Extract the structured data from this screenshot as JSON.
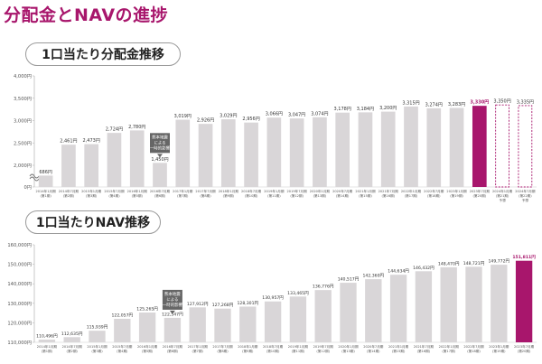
{
  "page_title": "分配金とNAVの進捗",
  "sections": {
    "distribution_title": "1口当たり分配金推移",
    "nav_title": "1口当たりNAV推移"
  },
  "colors": {
    "accent": "#a8166c",
    "bar": "#d9d6d8",
    "annotation_box": "#666666",
    "forecast_border": "#a8166c"
  },
  "chart_data": [
    {
      "type": "bar",
      "title": "1口当たり分配金推移",
      "ylim": [
        0,
        4000
      ],
      "axis_break": true,
      "ytick_labels": [
        "4,000円",
        "3,500円",
        "3,000円",
        "2,500円",
        "2,000円",
        "0円"
      ],
      "ytick_values": [
        4000,
        3500,
        3000,
        2500,
        2000,
        0
      ],
      "categories": [
        "2014年1月期",
        "2014年7月期",
        "2015年1月期",
        "2015年7月期",
        "2016年1月期",
        "2016年7月期",
        "2017年1月期",
        "2017年7月期",
        "2018年1月期",
        "2018年7月期",
        "2019年1月期",
        "2019年7月期",
        "2020年1月期",
        "2020年7月期",
        "2021年1月期",
        "2021年7月期",
        "2022年1月期",
        "2022年7月期",
        "2023年1月期",
        "2023年7月期",
        "2024年1月期",
        "2024年7月期"
      ],
      "periods": [
        "(第1期)",
        "(第2期)",
        "(第3期)",
        "(第4期)",
        "(第5期)",
        "(第6期)",
        "(第7期)",
        "(第8期)",
        "(第9期)",
        "(第10期)",
        "(第11期)",
        "(第12期)",
        "(第13期)",
        "(第14期)",
        "(第15期)",
        "(第16期)",
        "(第17期)",
        "(第18期)",
        "(第19期)",
        "(第20期)",
        "(第21期)",
        "(第22期)"
      ],
      "values": [
        686,
        2461,
        2473,
        2724,
        2780,
        1450,
        3019,
        2926,
        3029,
        2956,
        3066,
        3047,
        3074,
        3178,
        3184,
        3200,
        3315,
        3274,
        3283,
        3330,
        3350,
        3335
      ],
      "value_labels": [
        "686円",
        "2,461円",
        "2,473円",
        "2,724円",
        "2,780円",
        "1,450円",
        "3,019円",
        "2,926円",
        "3,029円",
        "2,956円",
        "3,066円",
        "3,047円",
        "3,074円",
        "3,178円",
        "3,184円",
        "3,200円",
        "3,315円",
        "3,274円",
        "3,283円",
        "3,330円",
        "3,350円",
        "3,335円"
      ],
      "highlight_index": 19,
      "forecast_indices": [
        20,
        21
      ],
      "forecast_label": "予想",
      "annotation": {
        "index": 5,
        "lines": [
          "熊本地震",
          "による",
          "一時的影響"
        ]
      }
    },
    {
      "type": "bar",
      "title": "1口当たりNAV推移",
      "ylim": [
        110000,
        160000
      ],
      "ytick_labels": [
        "160,000円",
        "150,000円",
        "140,000円",
        "130,000円",
        "120,000円",
        "110,000円"
      ],
      "ytick_values": [
        160000,
        150000,
        140000,
        130000,
        120000,
        110000
      ],
      "categories": [
        "2014年1月期",
        "2014年7月期",
        "2015年1月期",
        "2015年7月期",
        "2016年1月期",
        "2016年7月期",
        "2017年1月期",
        "2017年7月期",
        "2018年1月期",
        "2018年7月期",
        "2019年1月期",
        "2019年7月期",
        "2020年1月期",
        "2020年7月期",
        "2021年1月期",
        "2021年7月期",
        "2022年1月期",
        "2022年7月期",
        "2023年1月期",
        "2023年7月期"
      ],
      "periods": [
        "(第1期)",
        "(第2期)",
        "(第3期)",
        "(第4期)",
        "(第5期)",
        "(第6期)",
        "(第7期)",
        "(第8期)",
        "(第9期)",
        "(第10期)",
        "(第11期)",
        "(第12期)",
        "(第13期)",
        "(第14期)",
        "(第15期)",
        "(第16期)",
        "(第17期)",
        "(第18期)",
        "(第19期)",
        "(第20期)"
      ],
      "values": [
        110496,
        112635,
        115939,
        122057,
        125265,
        122547,
        127912,
        127268,
        128301,
        130957,
        133465,
        136776,
        140517,
        142360,
        144634,
        146432,
        148470,
        148721,
        149772,
        151811
      ],
      "value_labels": [
        "110,496円",
        "112,635円",
        "115,939円",
        "122,057円",
        "125,265円",
        "122,547円",
        "127,912円",
        "127,268円",
        "128,301円",
        "130,957円",
        "133,465円",
        "136,776円",
        "140,517円",
        "142,360円",
        "144,634円",
        "146,432円",
        "148,470円",
        "148,721円",
        "149,772円",
        "151,811円"
      ],
      "highlight_index": 19,
      "annotation": {
        "index": 5,
        "lines": [
          "熊本地震",
          "による",
          "一時的影響"
        ]
      }
    }
  ]
}
